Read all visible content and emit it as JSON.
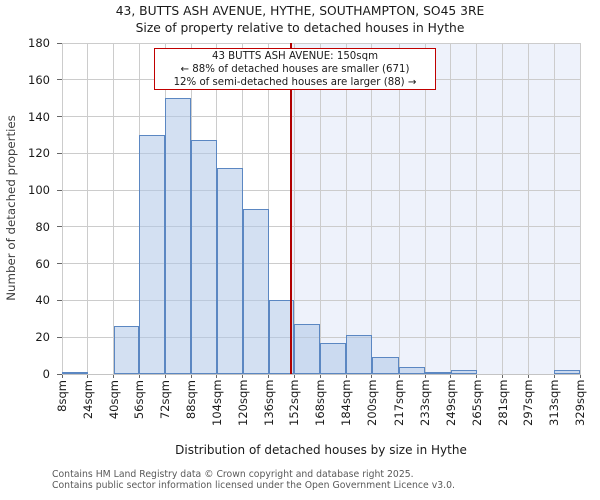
{
  "annotation": {
    "line1": "43 BUTTS ASH AVENUE: 150sqm",
    "line2": "← 88% of detached houses are smaller (671)",
    "line3": "12% of semi-detached houses are larger (88) →"
  },
  "footer": {
    "line1": "Contains HM Land Registry data © Crown copyright and database right 2025.",
    "line2": "Contains public sector information licensed under the Open Government Licence v3.0."
  },
  "chart_data": {
    "type": "bar",
    "title": "43, BUTTS ASH AVENUE, HYTHE, SOUTHAMPTON, SO45 3RE",
    "subtitle": "Size of property relative to detached houses in Hythe",
    "xlabel": "Distribution of detached houses by size in Hythe",
    "ylabel": "Number of detached properties",
    "bin_edges": [
      8,
      24,
      40,
      56,
      72,
      88,
      104,
      120,
      136,
      152,
      168,
      184,
      200,
      217,
      233,
      249,
      265,
      281,
      297,
      313,
      329
    ],
    "bin_labels": [
      "8sqm",
      "24sqm",
      "40sqm",
      "56sqm",
      "72sqm",
      "88sqm",
      "104sqm",
      "120sqm",
      "136sqm",
      "152sqm",
      "168sqm",
      "184sqm",
      "200sqm",
      "217sqm",
      "233sqm",
      "249sqm",
      "265sqm",
      "281sqm",
      "297sqm",
      "313sqm",
      "329sqm"
    ],
    "values": [
      1,
      0,
      26,
      130,
      150,
      127,
      112,
      90,
      40,
      27,
      17,
      21,
      9,
      4,
      1,
      2,
      0,
      0,
      0,
      2
    ],
    "y_ticks": [
      0,
      20,
      40,
      60,
      80,
      100,
      120,
      140,
      160,
      180
    ],
    "xlim": [
      8,
      329
    ],
    "ylim": [
      0,
      180
    ],
    "grid": true,
    "legend": "none",
    "marker": {
      "value": 150,
      "label": "43 BUTTS ASH AVENUE: 150sqm"
    },
    "highlight_region": {
      "from": 150,
      "to": 329
    },
    "colors": {
      "bar_fill": "rgba(174,199,232,0.55)",
      "bar_border": "#5b87c2",
      "marker_line": "#b00000",
      "annotation_border": "#c00000",
      "region_fill": "#eef2fb",
      "grid": "#cccccc",
      "spine": "#c4c4c4",
      "tick": "#666666"
    }
  }
}
